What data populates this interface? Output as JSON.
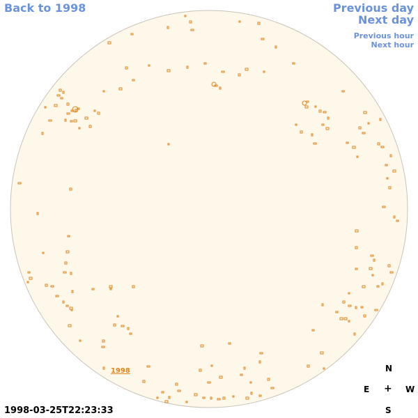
{
  "nav": {
    "back_label": "Back to 1998",
    "prev_day_label": "Previous day",
    "next_day_label": "Next day",
    "prev_hour_label": "Previous hour",
    "next_hour_label": "Next hour"
  },
  "disk": {
    "fill_color": "#fdf8ea",
    "edge_color": "#c9c4b8",
    "feature_color": "#e0851a"
  },
  "region_label": "1998",
  "compass": {
    "north": "N",
    "east": "E",
    "center": "+",
    "west": "W",
    "south": "S"
  },
  "timestamp": "1998-03-25T22:23:33"
}
